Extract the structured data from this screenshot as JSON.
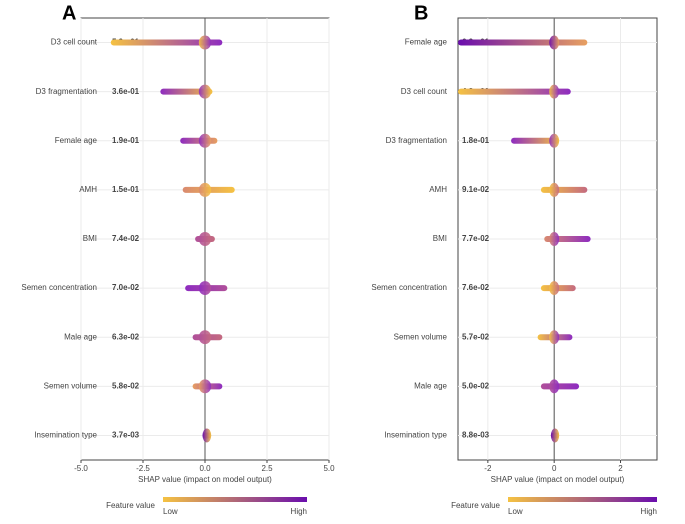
{
  "chart_data": [
    {
      "type": "beeswarm",
      "panel": "A",
      "categories": [
        "D3 cell count",
        "D3 fragmentation",
        "Female age",
        "AMH",
        "BMI",
        "Semen concentration",
        "Male age",
        "Semen volume",
        "Insemination type"
      ],
      "importance_labels": [
        "5.9e-01",
        "3.6e-01",
        "1.9e-01",
        "1.5e-01",
        "7.4e-02",
        "7.0e-02",
        "6.3e-02",
        "5.8e-02",
        "3.7e-03"
      ],
      "shap_min": [
        -3.8,
        -1.8,
        -1.0,
        -0.9,
        -0.4,
        -0.8,
        -0.5,
        -0.5,
        -0.1
      ],
      "shap_max": [
        0.7,
        0.3,
        0.5,
        1.2,
        0.4,
        0.9,
        0.7,
        0.7,
        0.25
      ],
      "colors_left": [
        "#f5c242",
        "#8e2cc0",
        "#8e2cc0",
        "#d98a70",
        "#b0509a",
        "#8e2cc0",
        "#b0509a",
        "#e8a060",
        "#6a0dad"
      ],
      "colors_right": [
        "#8e2cc0",
        "#f5c242",
        "#e8a060",
        "#f5c242",
        "#c46a80",
        "#b0509a",
        "#c46a80",
        "#8e2cc0",
        "#f5c242"
      ],
      "xlabel": "SHAP value (impact on model output)",
      "xlim": [
        -5,
        5
      ],
      "xticks": [
        {
          "value": -5,
          "label": "-5.0"
        },
        {
          "value": -2.5,
          "label": "-2.5"
        },
        {
          "value": 0,
          "label": "0.0"
        },
        {
          "value": 2.5,
          "label": "2.5"
        },
        {
          "value": 5,
          "label": "5.0"
        }
      ],
      "grid": true,
      "colorbar_label": "Feature value",
      "colorbar_low": "Low",
      "colorbar_high": "High",
      "low_color": "#f5c242",
      "high_color": "#6a0dad"
    },
    {
      "type": "beeswarm",
      "panel": "B",
      "categories": [
        "Female age",
        "D3 cell count",
        "D3 fragmentation",
        "AMH",
        "BMI",
        "Semen concentration",
        "Semen volume",
        "Male age",
        "Insemination type"
      ],
      "importance_labels": [
        "6.2e-01",
        "4.3e-01",
        "1.8e-01",
        "9.1e-02",
        "7.7e-02",
        "7.6e-02",
        "5.7e-02",
        "5.0e-02",
        "8.8e-03"
      ],
      "shap_min": [
        -2.9,
        -2.9,
        -1.3,
        -0.4,
        -0.3,
        -0.4,
        -0.5,
        -0.4,
        -0.1
      ],
      "shap_max": [
        1.0,
        0.5,
        0.15,
        1.0,
        1.1,
        0.65,
        0.55,
        0.75,
        0.15
      ],
      "colors_left": [
        "#6a0dad",
        "#f5c242",
        "#8e2cc0",
        "#f5c242",
        "#d98a70",
        "#f5c242",
        "#f5c242",
        "#b0509a",
        "#6a0dad"
      ],
      "colors_right": [
        "#e8a060",
        "#8e2cc0",
        "#f5c242",
        "#c46a80",
        "#8e2cc0",
        "#c46a80",
        "#8e2cc0",
        "#8e2cc0",
        "#f5c242"
      ],
      "xlabel": "SHAP value (impact on model output)",
      "xlim": [
        -2.9,
        3.1
      ],
      "xticks": [
        -2,
        0,
        2
      ],
      "grid": true,
      "colorbar_label": "Feature value",
      "colorbar_low": "Low",
      "colorbar_high": "High",
      "low_color": "#f5c242",
      "high_color": "#6a0dad"
    }
  ]
}
